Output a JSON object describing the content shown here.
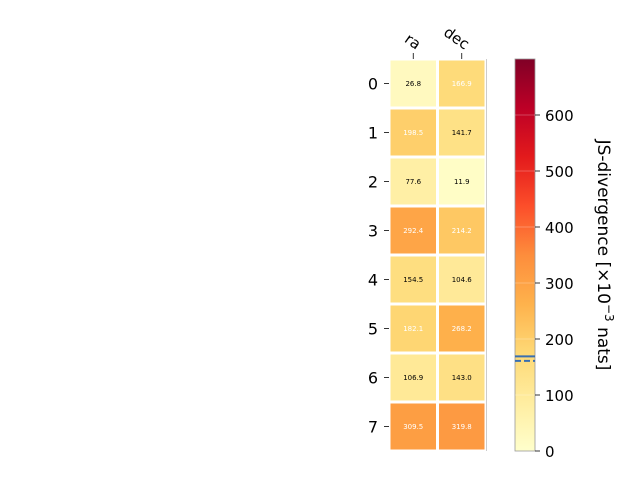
{
  "chart_data": {
    "type": "heatmap",
    "columns": [
      "ra",
      "dec"
    ],
    "rows": [
      "0",
      "1",
      "2",
      "3",
      "4",
      "5",
      "6",
      "7"
    ],
    "values": [
      [
        26.8,
        166.9
      ],
      [
        198.5,
        141.7
      ],
      [
        77.6,
        11.9
      ],
      [
        292.4,
        214.2
      ],
      [
        154.5,
        104.6
      ],
      [
        182.1,
        268.2
      ],
      [
        106.9,
        143.0
      ],
      [
        309.5,
        319.8
      ]
    ],
    "value_labels": [
      [
        "26.8",
        "166.9"
      ],
      [
        "198.5",
        "141.7"
      ],
      [
        "77.6",
        "11.9"
      ],
      [
        "292.4",
        "214.2"
      ],
      [
        "154.5",
        "104.6"
      ],
      [
        "182.1",
        "268.2"
      ],
      [
        "106.9",
        "143.0"
      ],
      [
        "309.5",
        "319.8"
      ]
    ],
    "colorbar": {
      "label": "JS-divergence [×10",
      "label_exponent": "−3",
      "label_suffix": " nats]",
      "range": [
        0,
        700
      ],
      "ticks": [
        0,
        100,
        200,
        300,
        400,
        500,
        600
      ],
      "tick_labels": [
        "0",
        "100",
        "200",
        "300",
        "400",
        "500",
        "600"
      ],
      "marker_values": [
        161,
        169
      ],
      "marker_color": "#3a6fb0",
      "colormap": "YlOrRd"
    }
  }
}
